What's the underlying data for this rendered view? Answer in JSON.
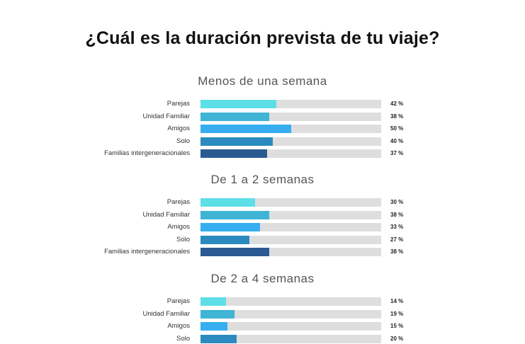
{
  "title": "¿Cuál es la duración prevista de tu viaje?",
  "chart_data": {
    "type": "bar",
    "orientation": "horizontal",
    "title": "¿Cuál es la duración prevista de tu viaje?",
    "xlim": [
      0,
      100
    ],
    "unit": "%",
    "colors": {
      "Parejas": "#5ddfe8",
      "Unidad Familiar": "#3fb4d4",
      "Amigos": "#36aef0",
      "Solo": "#2b8bbf",
      "Familias intergeneracionales": "#2b5a93",
      "track": "#dedede"
    },
    "groups": [
      {
        "title": "Menos de una semana",
        "categories": [
          "Parejas",
          "Unidad Familiar",
          "Amigos",
          "Solo",
          "Familias intergeneracionales"
        ],
        "values": [
          42,
          38,
          50,
          40,
          37
        ],
        "labels": [
          "42 %",
          "38 %",
          "50 %",
          "40 %",
          "37 %"
        ]
      },
      {
        "title": "De 1 a 2 semanas",
        "categories": [
          "Parejas",
          "Unidad Familiar",
          "Amigos",
          "Solo",
          "Familias intergeneracionales"
        ],
        "values": [
          30,
          38,
          33,
          27,
          38
        ],
        "labels": [
          "30 %",
          "38 %",
          "33 %",
          "27 %",
          "38 %"
        ]
      },
      {
        "title": "De 2 a 4 semanas",
        "categories": [
          "Parejas",
          "Unidad Familiar",
          "Amigos",
          "Solo"
        ],
        "values": [
          14,
          19,
          15,
          20
        ],
        "labels": [
          "14 %",
          "19 %",
          "15 %",
          "20 %"
        ]
      }
    ]
  }
}
